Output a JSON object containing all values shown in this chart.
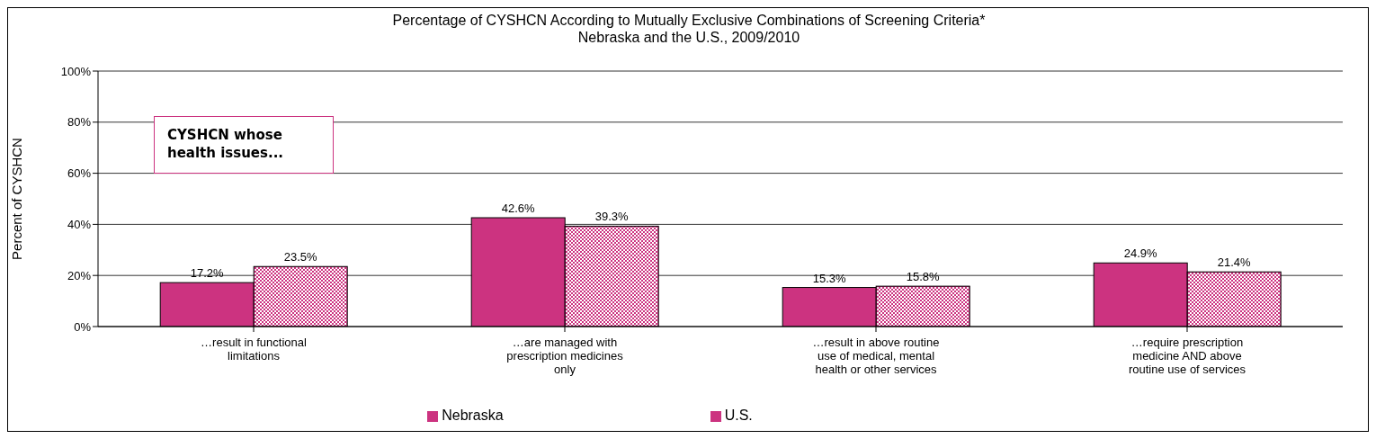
{
  "chart_data": {
    "type": "bar",
    "title": "Percentage of CYSHCN According to Mutually Exclusive Combinations of Screening Criteria*",
    "subtitle": "Nebraska and the U.S., 2009/2010",
    "ylabel": "Percent of CYSHCN",
    "categories": [
      "…result in functional limitations",
      "…are managed with prescription medicines only",
      "…result in above routine use of medical, mental health or other services",
      "…require prescription medicine AND above routine use of services"
    ],
    "series": [
      {
        "name": "Nebraska",
        "color": "#cc3380",
        "values": [
          17.2,
          42.6,
          15.3,
          24.9
        ],
        "value_labels": [
          "17.2%",
          "42.6%",
          "15.3%",
          "24.9%"
        ]
      },
      {
        "name": "U.S.",
        "color": "#cc3380",
        "values": [
          23.5,
          39.3,
          15.8,
          21.4
        ],
        "value_labels": [
          "23.5%",
          "39.3%",
          "15.8%",
          "21.4%"
        ]
      }
    ],
    "ylim": [
      0,
      100
    ],
    "yticks": [
      {
        "value": 0,
        "label": "0%"
      },
      {
        "value": 20,
        "label": "20%"
      },
      {
        "value": 40,
        "label": "40%"
      },
      {
        "value": 60,
        "label": "60%"
      },
      {
        "value": 80,
        "label": "80%"
      },
      {
        "value": 100,
        "label": "100%"
      }
    ],
    "grid": "y",
    "legend": "bottom",
    "annotations": [
      "CYSHCN whose health issues..."
    ]
  }
}
